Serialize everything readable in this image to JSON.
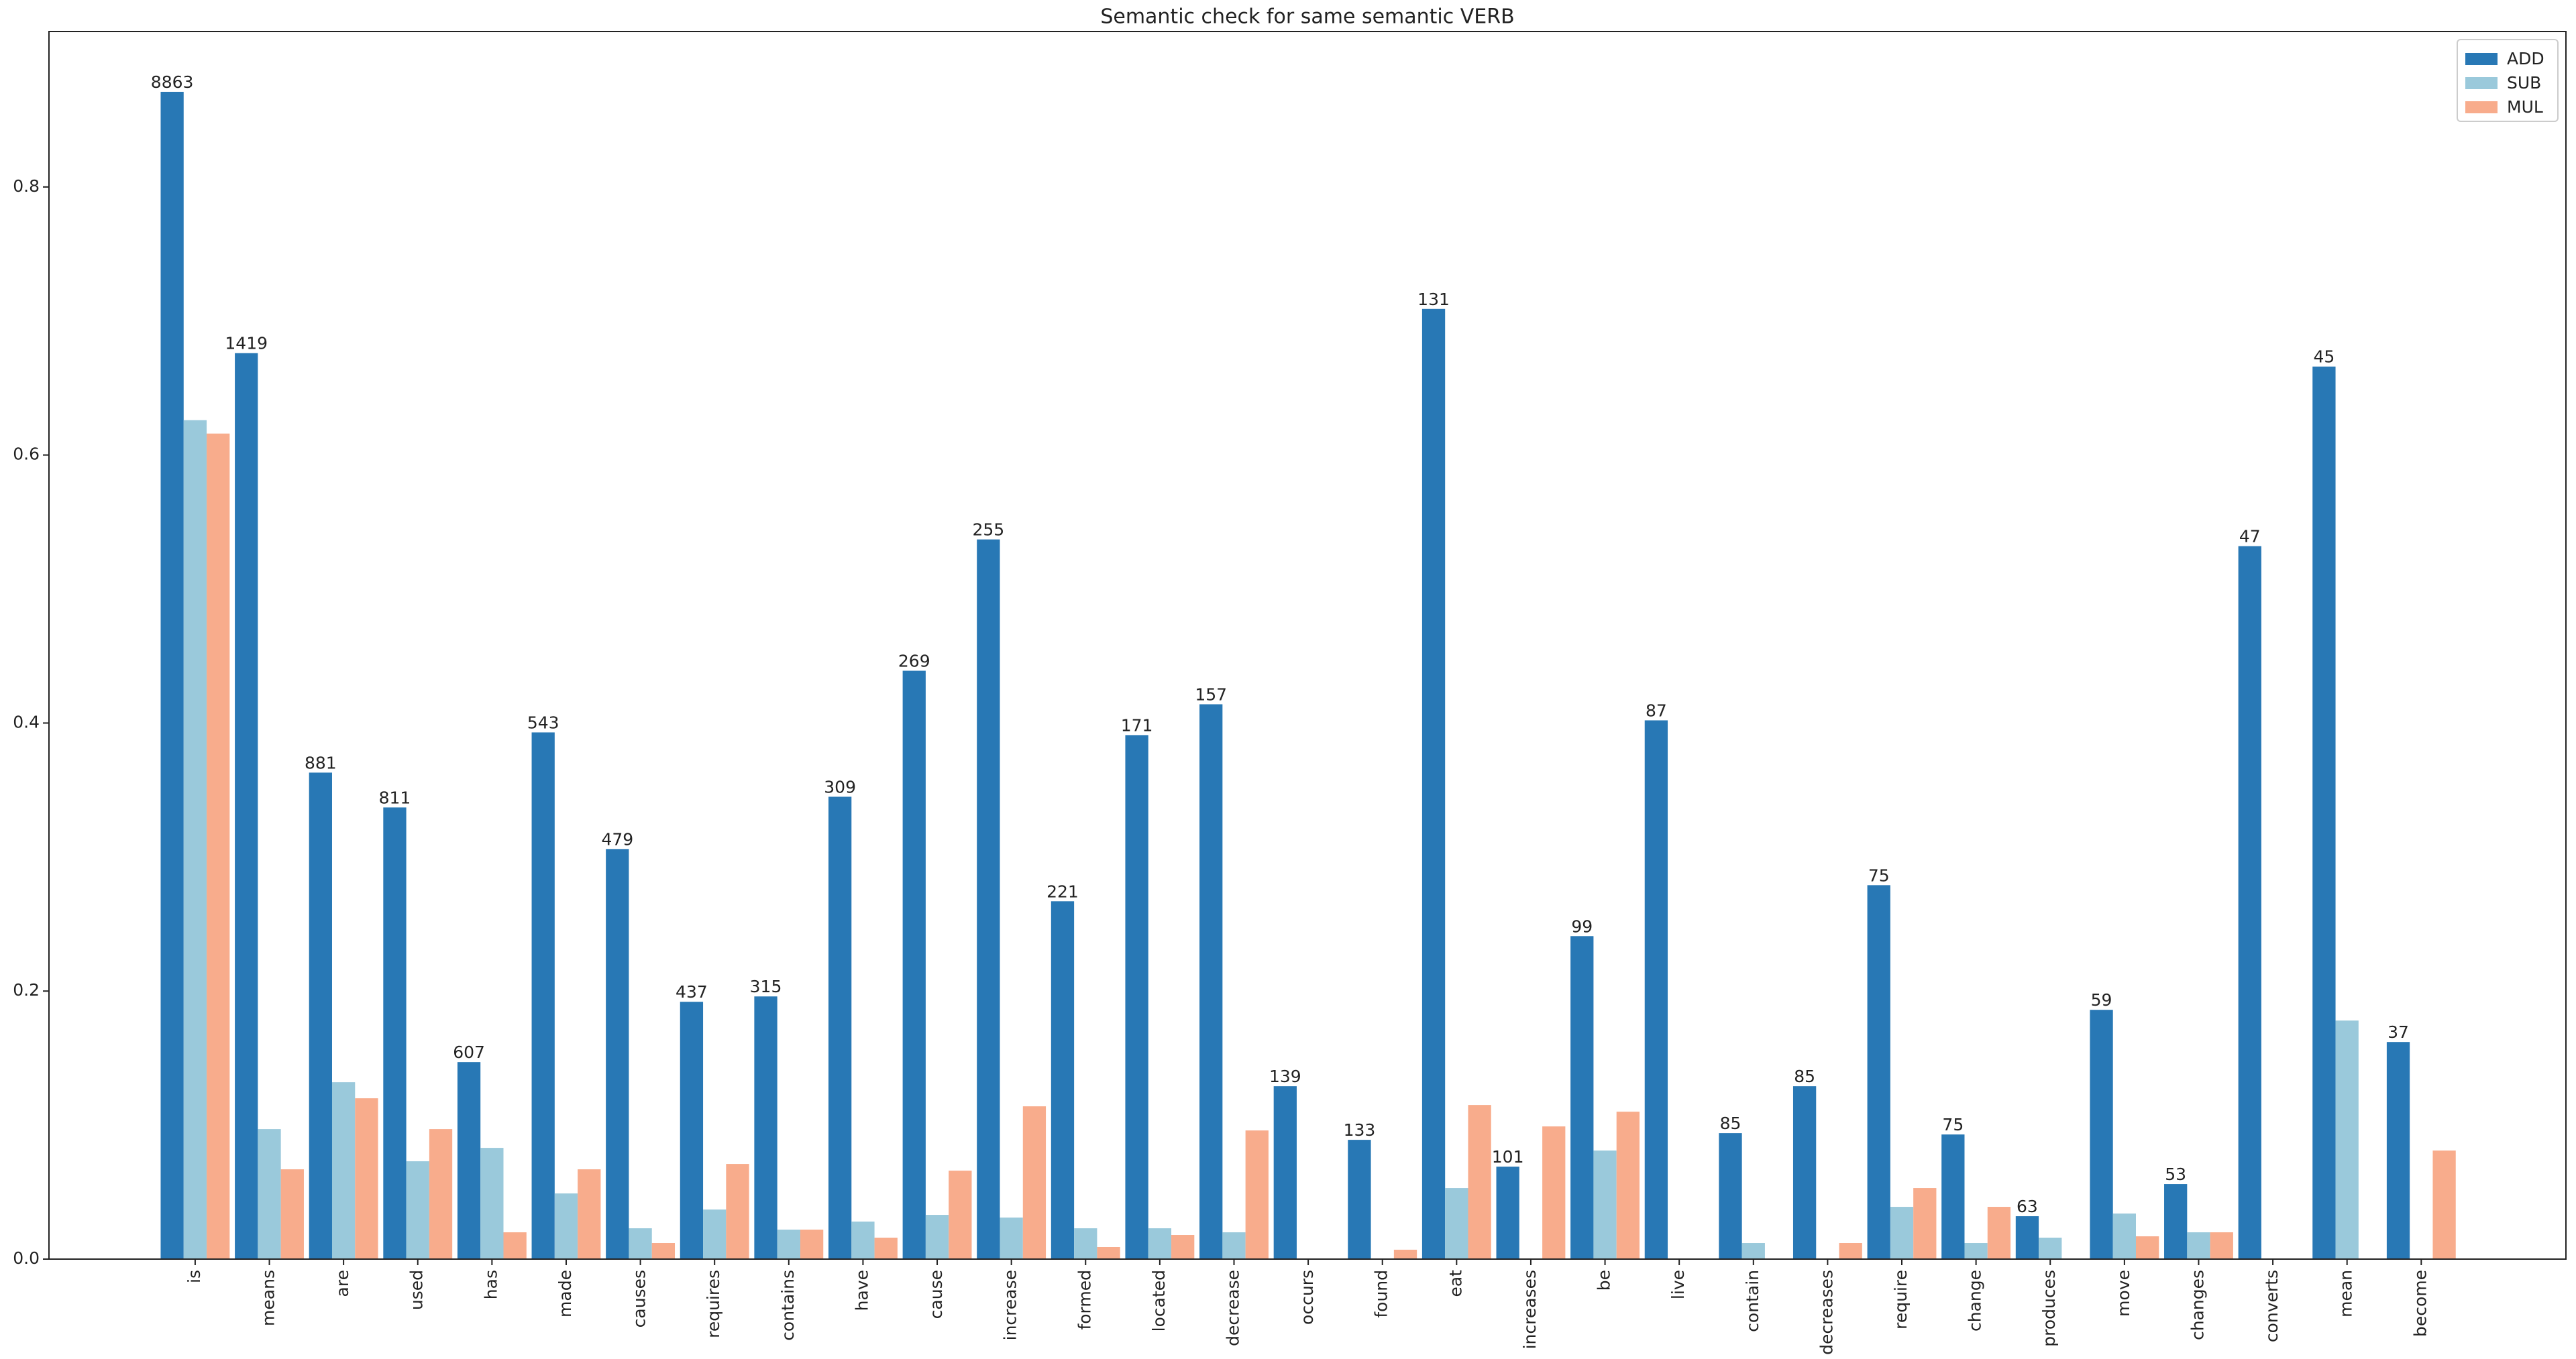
{
  "chart_data": {
    "type": "bar",
    "title": "Semantic check for same semantic VERB",
    "categories": [
      "is",
      "means",
      "are",
      "used",
      "has",
      "made",
      "causes",
      "requires",
      "contains",
      "have",
      "cause",
      "increase",
      "formed",
      "located",
      "decrease",
      "occurs",
      "found",
      "eat",
      "increases",
      "be",
      "live",
      "contain",
      "decreases",
      "require",
      "change",
      "produces",
      "move",
      "changes",
      "converts",
      "mean",
      "become"
    ],
    "series": [
      {
        "name": "ADD",
        "color": "#2878b5",
        "values": [
          0.871,
          0.676,
          0.363,
          0.337,
          0.147,
          0.393,
          0.306,
          0.192,
          0.196,
          0.345,
          0.439,
          0.537,
          0.267,
          0.391,
          0.414,
          0.129,
          0.089,
          0.709,
          0.069,
          0.241,
          0.402,
          0.094,
          0.129,
          0.279,
          0.093,
          0.032,
          0.186,
          0.056,
          0.532,
          0.666,
          0.162
        ]
      },
      {
        "name": "SUB",
        "color": "#9ac9db",
        "values": [
          0.626,
          0.097,
          0.132,
          0.073,
          0.083,
          0.049,
          0.023,
          0.037,
          0.022,
          0.028,
          0.033,
          0.031,
          0.023,
          0.023,
          0.02,
          0,
          0,
          0.053,
          0,
          0.081,
          0,
          0.012,
          0,
          0.039,
          0.012,
          0.016,
          0.034,
          0.02,
          0,
          0.178,
          0
        ]
      },
      {
        "name": "MUL",
        "color": "#f8ac8c",
        "values": [
          0.616,
          0.067,
          0.12,
          0.097,
          0.02,
          0.067,
          0.012,
          0.071,
          0.022,
          0.016,
          0.066,
          0.114,
          0.009,
          0.018,
          0.096,
          0,
          0.007,
          0.115,
          0.099,
          0.11,
          0,
          0,
          0.012,
          0.053,
          0.039,
          0,
          0.017,
          0.02,
          0,
          0,
          0.081
        ]
      }
    ],
    "counts": [
      8863,
      1419,
      881,
      811,
      607,
      543,
      479,
      437,
      315,
      309,
      269,
      255,
      221,
      171,
      157,
      139,
      133,
      131,
      101,
      99,
      87,
      85,
      85,
      75,
      75,
      63,
      59,
      53,
      47,
      45,
      37
    ],
    "ylim": [
      0,
      0.916
    ],
    "yticks": [
      {
        "value": 0,
        "label": "0.0"
      },
      0.2,
      0.4,
      0.6,
      0.8
    ],
    "legend": "upper right"
  }
}
